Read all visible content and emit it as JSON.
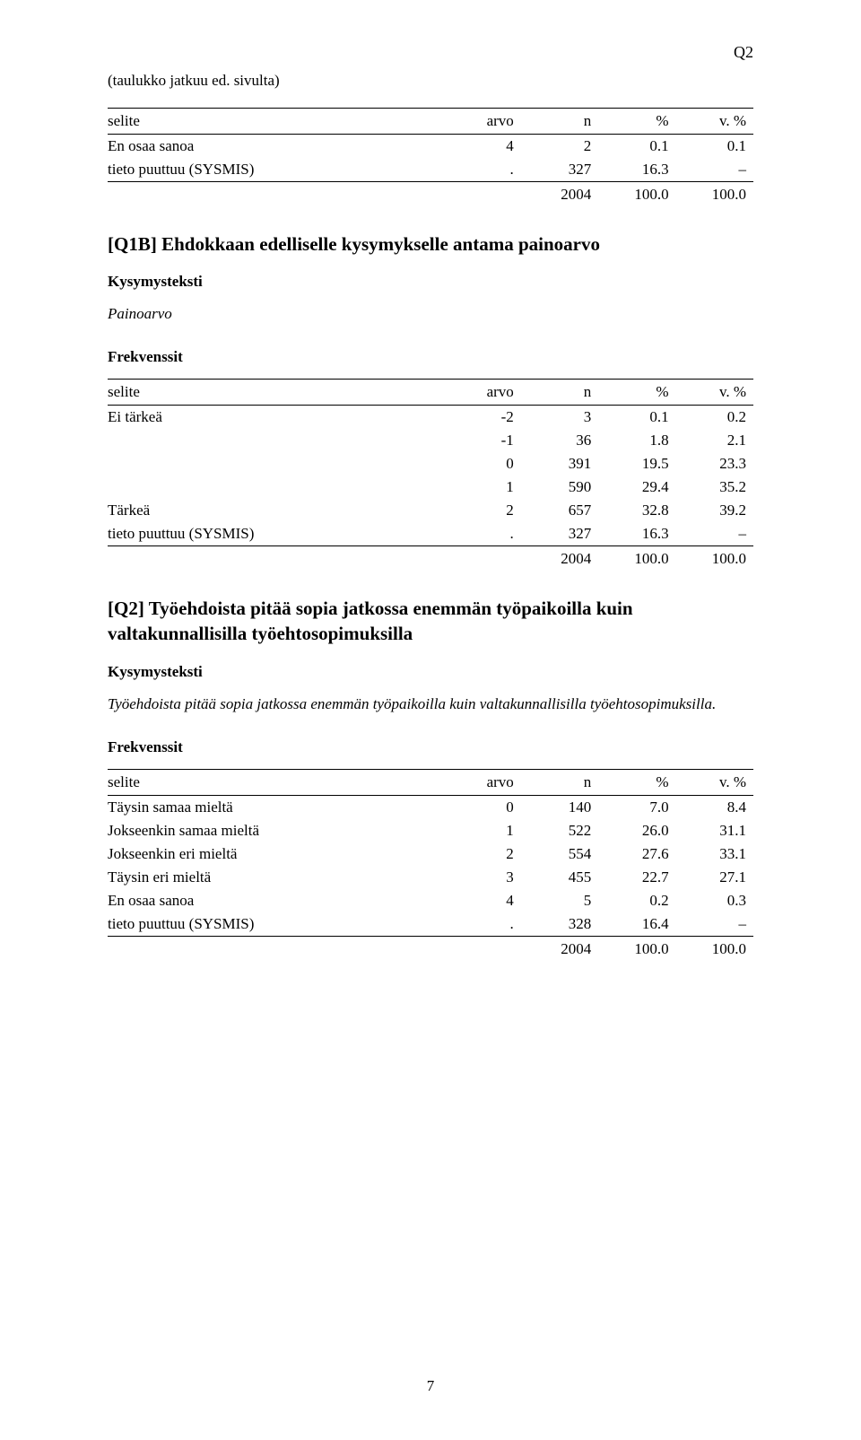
{
  "marker": "Q2",
  "page_number": "7",
  "cont_note": "(taulukko jatkuu ed. sivulta)",
  "headers": {
    "selite": "selite",
    "arvo": "arvo",
    "n": "n",
    "pct": "%",
    "vpct": "v. %"
  },
  "table1": {
    "rows": [
      {
        "label": "En osaa sanoa",
        "arvo": "4",
        "n": "2",
        "pct": "0.1",
        "vpct": "0.1"
      },
      {
        "label": "tieto puuttuu (SYSMIS)",
        "arvo": ".",
        "n": "327",
        "pct": "16.3",
        "vpct": "–"
      }
    ],
    "totals": {
      "label": "",
      "arvo": "",
      "n": "2004",
      "pct": "100.0",
      "vpct": "100.0"
    }
  },
  "q1b": {
    "title": "[Q1B] Ehdokkaan edelliselle kysymykselle antama painoarvo",
    "kysymysteksti_label": "Kysymysteksti",
    "kysymysteksti_body": "Painoarvo",
    "frekvenssit_label": "Frekvenssit",
    "rows": [
      {
        "label": "Ei tärkeä",
        "arvo": "-2",
        "n": "3",
        "pct": "0.1",
        "vpct": "0.2"
      },
      {
        "label": "",
        "arvo": "-1",
        "n": "36",
        "pct": "1.8",
        "vpct": "2.1"
      },
      {
        "label": "",
        "arvo": "0",
        "n": "391",
        "pct": "19.5",
        "vpct": "23.3"
      },
      {
        "label": "",
        "arvo": "1",
        "n": "590",
        "pct": "29.4",
        "vpct": "35.2"
      },
      {
        "label": "Tärkeä",
        "arvo": "2",
        "n": "657",
        "pct": "32.8",
        "vpct": "39.2"
      },
      {
        "label": "tieto puuttuu (SYSMIS)",
        "arvo": ".",
        "n": "327",
        "pct": "16.3",
        "vpct": "–"
      }
    ],
    "totals": {
      "label": "",
      "arvo": "",
      "n": "2004",
      "pct": "100.0",
      "vpct": "100.0"
    }
  },
  "q2": {
    "title": "[Q2] Työehdoista pitää sopia jatkossa enemmän työpaikoilla kuin valtakunnallisilla työehtosopimuksilla",
    "kysymysteksti_label": "Kysymysteksti",
    "kysymysteksti_body": "Työehdoista pitää sopia jatkossa enemmän työpaikoilla kuin valtakunnallisilla työehtosopimuksilla.",
    "frekvenssit_label": "Frekvenssit",
    "rows": [
      {
        "label": "Täysin samaa mieltä",
        "arvo": "0",
        "n": "140",
        "pct": "7.0",
        "vpct": "8.4"
      },
      {
        "label": "Jokseenkin samaa mieltä",
        "arvo": "1",
        "n": "522",
        "pct": "26.0",
        "vpct": "31.1"
      },
      {
        "label": "Jokseenkin eri mieltä",
        "arvo": "2",
        "n": "554",
        "pct": "27.6",
        "vpct": "33.1"
      },
      {
        "label": "Täysin eri mieltä",
        "arvo": "3",
        "n": "455",
        "pct": "22.7",
        "vpct": "27.1"
      },
      {
        "label": "En osaa sanoa",
        "arvo": "4",
        "n": "5",
        "pct": "0.2",
        "vpct": "0.3"
      },
      {
        "label": "tieto puuttuu (SYSMIS)",
        "arvo": ".",
        "n": "328",
        "pct": "16.4",
        "vpct": "–"
      }
    ],
    "totals": {
      "label": "",
      "arvo": "",
      "n": "2004",
      "pct": "100.0",
      "vpct": "100.0"
    }
  }
}
